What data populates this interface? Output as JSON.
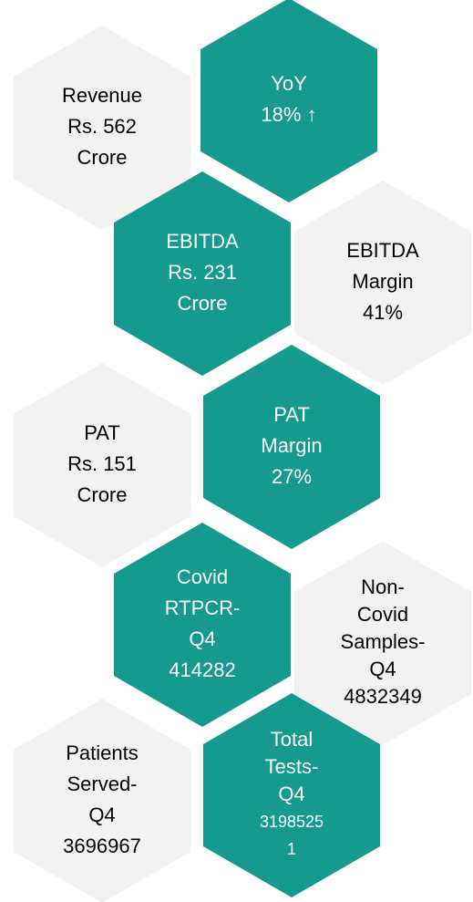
{
  "hexagons": [
    {
      "lines": [
        "Revenue",
        "Rs. 562",
        "Crore"
      ]
    },
    {
      "lines": [
        "YoY",
        "18% ↑"
      ]
    },
    {
      "lines": [
        "EBITDA",
        "Rs. 231",
        "Crore"
      ]
    },
    {
      "lines": [
        "EBITDA",
        "Margin",
        "41%"
      ]
    },
    {
      "lines": [
        "PAT",
        "Rs. 151",
        "Crore"
      ]
    },
    {
      "lines": [
        "PAT",
        "Margin",
        "27%"
      ]
    },
    {
      "lines": [
        "Covid",
        "RTPCR-",
        "Q4",
        "414282"
      ]
    },
    {
      "lines": [
        "Non-",
        "Covid",
        "Samples-",
        "Q4",
        "4832349"
      ]
    },
    {
      "lines": [
        "Patients",
        "Served-",
        "Q4",
        "3696967"
      ]
    },
    {
      "lines": [
        "Total",
        "Tests-",
        "Q4",
        "3198525",
        "1"
      ]
    }
  ]
}
